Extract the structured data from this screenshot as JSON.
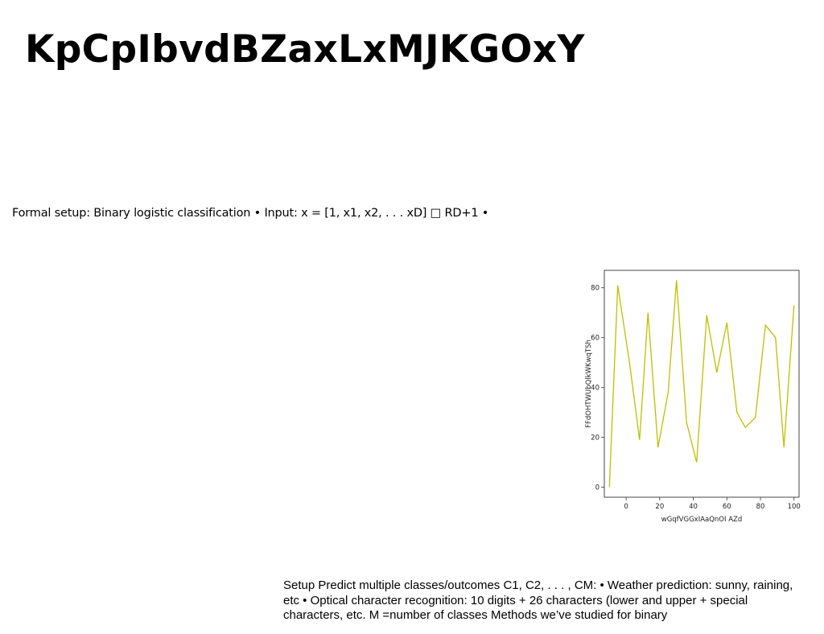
{
  "slide": {
    "title": "KpCpIbvdBZaxLxMJKGOxY",
    "formal_setup": "Formal setup: Binary logistic classification • Input: x = [1, x1, x2, . . . xD] □ RD+1 •",
    "setup_text": "Setup Predict multiple classes/outcomes C1, C2, . . . , CM: • Weather prediction: sunny, raining, etc • Optical character recognition: 10 digits + 26 characters (lower and upper + special characters, etc. M =number of classes Methods we’ve studied for binary"
  },
  "chart_data": {
    "type": "line",
    "xlabel": "wGqfVGGxIAaQnOI AZd",
    "ylabel": "FFdOHTWUbQlkWKwqTSh",
    "xlim": [
      -13,
      103
    ],
    "ylim": [
      -4,
      87
    ],
    "xticks": [
      0,
      20,
      40,
      60,
      80,
      100
    ],
    "yticks": [
      0,
      20,
      40,
      60,
      80
    ],
    "grid": false,
    "series": [
      {
        "color": "#bfbf00",
        "x": [
          -10,
          -5,
          2,
          8,
          13,
          19,
          25,
          30,
          36,
          42,
          48,
          54,
          60,
          66,
          71,
          77,
          83,
          89,
          94,
          100
        ],
        "y": [
          0,
          81,
          50,
          19,
          70,
          16,
          38,
          83,
          26,
          10,
          69,
          46,
          66,
          30,
          24,
          28,
          65,
          60,
          16,
          73
        ]
      }
    ]
  }
}
